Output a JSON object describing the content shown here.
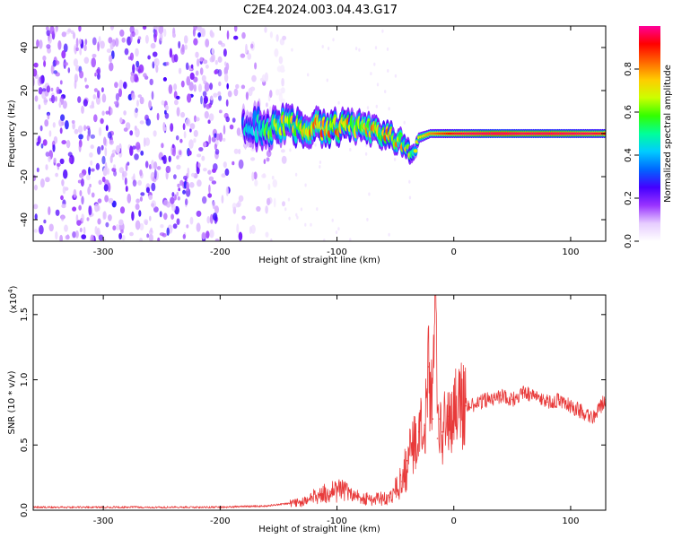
{
  "title": "C2E4.2024.003.04.43.G17",
  "chart_data": [
    {
      "type": "heatmap",
      "xlabel": "Height of straight line (km)",
      "ylabel": "Frequency (Hz)",
      "xlim": [
        -360,
        130
      ],
      "ylim": [
        -50,
        50
      ],
      "xticks": [
        -300,
        -200,
        -100,
        0,
        100
      ],
      "yticks": [
        -40,
        -20,
        0,
        20,
        40
      ],
      "colorbar": {
        "label": "Normalized spectral amplitude",
        "range": [
          0,
          1
        ],
        "ticks": [
          0.0,
          0.2,
          0.4,
          0.6,
          0.8
        ],
        "colormap": [
          "#ffffff",
          "#e6ccff",
          "#9933ff",
          "#4400ff",
          "#0066ff",
          "#00ccff",
          "#00ff99",
          "#33ff00",
          "#ccff00",
          "#ffcc00",
          "#ff6600",
          "#ff0000",
          "#ff0099"
        ]
      },
      "texture_regions": [
        {
          "x": [
            -360,
            -200
          ],
          "y": [
            -50,
            50
          ],
          "density": 0.9
        },
        {
          "x": [
            -200,
            -145
          ],
          "y": [
            -50,
            50
          ],
          "density": 0.5
        }
      ],
      "ridge": [
        {
          "x": -180,
          "y": 3,
          "w": 10,
          "a": 0.3
        },
        {
          "x": -160,
          "y": 3,
          "w": 10,
          "a": 0.45
        },
        {
          "x": -140,
          "y": 4,
          "w": 9,
          "a": 0.55
        },
        {
          "x": -120,
          "y": 3,
          "w": 9,
          "a": 0.6
        },
        {
          "x": -100,
          "y": 3,
          "w": 8,
          "a": 0.6
        },
        {
          "x": -80,
          "y": 3,
          "w": 8,
          "a": 0.55
        },
        {
          "x": -60,
          "y": 0,
          "w": 7,
          "a": 0.6
        },
        {
          "x": -45,
          "y": -4,
          "w": 6,
          "a": 0.55
        },
        {
          "x": -35,
          "y": -10,
          "w": 5,
          "a": 0.45
        },
        {
          "x": -30,
          "y": -2,
          "w": 3,
          "a": 0.55
        },
        {
          "x": -20,
          "y": 0,
          "w": 2.5,
          "a": 0.65
        },
        {
          "x": 0,
          "y": 0,
          "w": 2.5,
          "a": 0.75
        },
        {
          "x": 20,
          "y": 0,
          "w": 2.5,
          "a": 0.8
        },
        {
          "x": 40,
          "y": 0,
          "w": 2.5,
          "a": 0.85
        },
        {
          "x": 60,
          "y": 0,
          "w": 2.5,
          "a": 0.8
        },
        {
          "x": 80,
          "y": 0,
          "w": 2.5,
          "a": 0.82
        },
        {
          "x": 100,
          "y": 0,
          "w": 2.5,
          "a": 0.8
        },
        {
          "x": 130,
          "y": 0,
          "w": 2.5,
          "a": 0.75
        }
      ]
    },
    {
      "type": "line",
      "xlabel": "Height of straight line (km)",
      "ylabel": "SNR (10 * v/v)",
      "scale_label": "(x10",
      "scale_exponent": "4",
      "scale_suffix": ")",
      "xlim": [
        -360,
        130
      ],
      "ylim": [
        0,
        1.65
      ],
      "xticks": [
        -300,
        -200,
        -100,
        0,
        100
      ],
      "yticks": [
        "0.0",
        "0.5",
        "1.0",
        "1.5"
      ],
      "color": "#e83a3a",
      "series": [
        {
          "x": [
            -360,
            -300,
            -250,
            -200,
            -160,
            -130,
            -115,
            -105,
            -95,
            -85,
            -70,
            -55,
            -45,
            -40,
            -35,
            -30,
            -25,
            -22,
            -18,
            -16,
            -14,
            -12,
            -10,
            -5,
            0,
            10,
            20,
            30,
            40,
            50,
            60,
            70,
            80,
            90,
            100,
            110,
            120,
            130
          ],
          "y": [
            0.02,
            0.02,
            0.02,
            0.02,
            0.03,
            0.06,
            0.12,
            0.14,
            0.15,
            0.1,
            0.08,
            0.1,
            0.22,
            0.38,
            0.5,
            0.6,
            0.65,
            1.1,
            0.7,
            1.65,
            0.55,
            0.7,
            0.6,
            0.72,
            0.75,
            0.8,
            0.82,
            0.85,
            0.88,
            0.85,
            0.9,
            0.87,
            0.83,
            0.85,
            0.8,
            0.75,
            0.72,
            0.85
          ]
        }
      ]
    }
  ]
}
